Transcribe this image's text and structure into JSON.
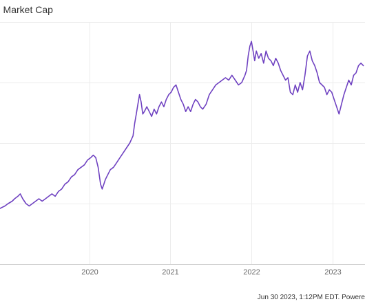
{
  "chart_data": {
    "type": "line",
    "title": ") Market Cap",
    "xlabel": "",
    "ylabel": "",
    "grid": true,
    "xlim": [
      2018.9,
      2023.4
    ],
    "ylim": [
      0,
      100
    ],
    "x_ticks": [
      {
        "value": 2020,
        "label": "2020"
      },
      {
        "value": 2021,
        "label": "2021"
      },
      {
        "value": 2022,
        "label": "2022"
      },
      {
        "value": 2023,
        "label": "2023"
      }
    ],
    "y_gridlines": [
      0,
      25,
      50,
      75,
      100
    ],
    "series": [
      {
        "color": "#6f42c1",
        "x": [
          2018.9,
          2018.96,
          2019.0,
          2019.05,
          2019.08,
          2019.12,
          2019.15,
          2019.18,
          2019.22,
          2019.26,
          2019.3,
          2019.34,
          2019.38,
          2019.42,
          2019.46,
          2019.5,
          2019.54,
          2019.58,
          2019.62,
          2019.66,
          2019.7,
          2019.74,
          2019.78,
          2019.82,
          2019.86,
          2019.9,
          2019.94,
          2019.98,
          2020.02,
          2020.05,
          2020.08,
          2020.11,
          2020.14,
          2020.16,
          2020.18,
          2020.2,
          2020.23,
          2020.26,
          2020.3,
          2020.34,
          2020.38,
          2020.42,
          2020.46,
          2020.5,
          2020.54,
          2020.56,
          2020.58,
          2020.6,
          2020.62,
          2020.64,
          2020.66,
          2020.68,
          2020.71,
          2020.74,
          2020.77,
          2020.8,
          2020.83,
          2020.86,
          2020.89,
          2020.92,
          2020.95,
          2020.98,
          2021.01,
          2021.04,
          2021.07,
          2021.1,
          2021.13,
          2021.16,
          2021.19,
          2021.22,
          2021.25,
          2021.28,
          2021.31,
          2021.34,
          2021.37,
          2021.4,
          2021.44,
          2021.48,
          2021.52,
          2021.56,
          2021.6,
          2021.64,
          2021.68,
          2021.72,
          2021.76,
          2021.8,
          2021.84,
          2021.88,
          2021.92,
          2021.94,
          2021.96,
          2021.98,
          2022.0,
          2022.02,
          2022.04,
          2022.06,
          2022.09,
          2022.12,
          2022.15,
          2022.18,
          2022.21,
          2022.24,
          2022.27,
          2022.3,
          2022.33,
          2022.36,
          2022.39,
          2022.42,
          2022.45,
          2022.48,
          2022.51,
          2022.54,
          2022.57,
          2022.6,
          2022.63,
          2022.66,
          2022.69,
          2022.72,
          2022.75,
          2022.78,
          2022.81,
          2022.84,
          2022.87,
          2022.9,
          2022.93,
          2022.96,
          2022.99,
          2023.02,
          2023.05,
          2023.08,
          2023.11,
          2023.14,
          2023.17,
          2023.2,
          2023.23,
          2023.26,
          2023.29,
          2023.32,
          2023.35,
          2023.38
        ],
        "y": [
          23,
          24,
          25,
          26,
          27,
          28,
          29,
          27,
          25,
          24,
          25,
          26,
          27,
          26,
          27,
          28,
          29,
          28,
          30,
          31,
          33,
          34,
          36,
          37,
          39,
          40,
          41,
          43,
          44,
          45,
          44,
          40,
          33,
          31,
          33,
          35,
          37,
          39,
          40,
          42,
          44,
          46,
          48,
          50,
          53,
          58,
          62,
          66,
          70,
          67,
          62,
          63,
          65,
          63,
          61,
          64,
          62,
          65,
          67,
          65,
          68,
          70,
          71,
          73,
          74,
          71,
          68,
          66,
          63,
          65,
          63,
          66,
          68,
          67,
          65,
          64,
          66,
          70,
          72,
          74,
          75,
          76,
          77,
          76,
          78,
          76,
          74,
          75,
          78,
          80,
          86,
          90,
          92,
          88,
          84,
          88,
          85,
          87,
          83,
          88,
          85,
          84,
          82,
          85,
          83,
          80,
          78,
          76,
          77,
          71,
          70,
          74,
          71,
          75,
          72,
          78,
          86,
          88,
          84,
          82,
          79,
          75,
          74,
          73,
          70,
          72,
          71,
          68,
          65,
          62,
          66,
          70,
          73,
          76,
          74,
          78,
          79,
          82,
          83,
          82
        ]
      }
    ]
  },
  "footer": {
    "credit": "Jun 30 2023, 1:12PM EDT. Powere"
  }
}
